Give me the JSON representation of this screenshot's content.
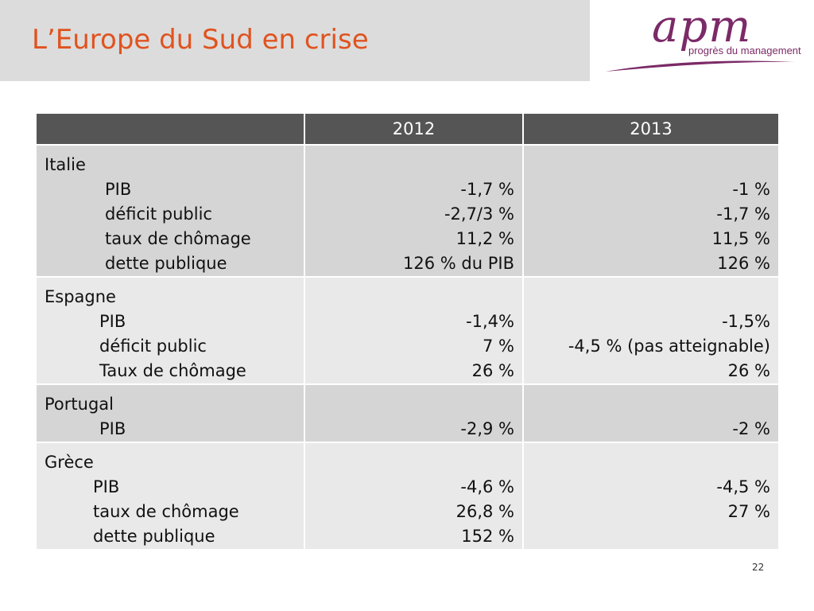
{
  "slide": {
    "title": "L’Europe du Sud en crise",
    "page_number": "22",
    "colors": {
      "title": "#e0531f",
      "header_bg": "#555555",
      "logo": "#7b2a67"
    }
  },
  "logo": {
    "wordmark": "apm",
    "tagline": "progrès du management"
  },
  "table": {
    "headers": [
      "",
      "2012",
      "2013"
    ],
    "rows": [
      {
        "country": "Italie",
        "indicators": [
          "PIB",
          "déficit public",
          "taux de chômage",
          "dette publique"
        ],
        "values_2012": [
          "-1,7 %",
          "-2,7/3 %",
          "11,2 %",
          "126 % du PIB"
        ],
        "values_2013": [
          "-1 %",
          "-1,7 %",
          "11,5 %",
          "126 %"
        ]
      },
      {
        "country": "Espagne",
        "indicators": [
          "PIB",
          "déficit public",
          "Taux de chômage"
        ],
        "values_2012": [
          "-1,4%",
          "7 %",
          "26 %"
        ],
        "values_2013": [
          "-1,5%",
          "-4,5 % (pas atteignable)",
          "26 %"
        ]
      },
      {
        "country": "Portugal",
        "indicators": [
          "PIB"
        ],
        "values_2012": [
          "-2,9 %"
        ],
        "values_2013": [
          "-2 %"
        ]
      },
      {
        "country": "Grèce",
        "indicators": [
          "PIB",
          "taux de chômage",
          "dette publique"
        ],
        "values_2012": [
          "-4,6 %",
          "26,8 %",
          "152 %"
        ],
        "values_2013": [
          "-4,5 %",
          "27  %"
        ]
      }
    ]
  }
}
